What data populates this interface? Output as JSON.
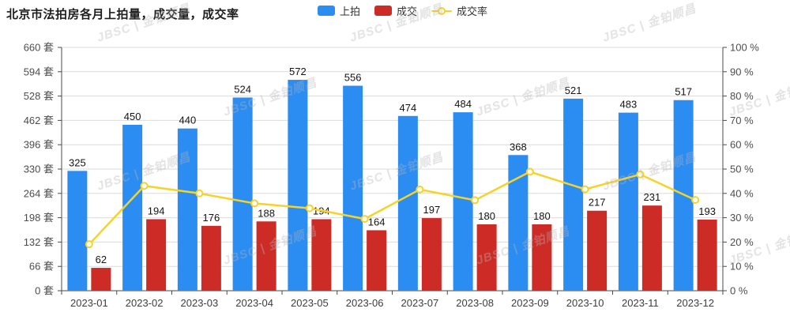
{
  "title": "北京市法拍房各月上拍量，成交量，成交率",
  "watermark_text": "JBSC | 金铂顺昌",
  "legend": [
    {
      "label": "上拍",
      "color": "#2B8CF2",
      "icon": "bar-swatch"
    },
    {
      "label": "成交",
      "color": "#CD2B26",
      "icon": "bar-swatch"
    },
    {
      "label": "成交率",
      "color": "#F5D328",
      "icon": "line-marker"
    }
  ],
  "chart_data": {
    "type": "bar",
    "subtype": "grouped-bars-with-line",
    "title": "北京市法拍房各月上拍量，成交量，成交率",
    "categories": [
      "2023-01",
      "2023-02",
      "2023-03",
      "2023-04",
      "2023-05",
      "2023-06",
      "2023-07",
      "2023-08",
      "2023-09",
      "2023-10",
      "2023-11",
      "2023-12"
    ],
    "series": [
      {
        "name": "上拍",
        "type": "bar",
        "axis": "left",
        "color": "#2B8CF2",
        "unit": "套",
        "values": [
          325,
          450,
          440,
          524,
          572,
          556,
          474,
          484,
          368,
          521,
          483,
          517
        ]
      },
      {
        "name": "成交",
        "type": "bar",
        "axis": "left",
        "color": "#CD2B26",
        "unit": "套",
        "values": [
          62,
          194,
          176,
          188,
          194,
          164,
          197,
          180,
          180,
          217,
          231,
          193
        ]
      },
      {
        "name": "成交率",
        "type": "line",
        "axis": "right",
        "color": "#F5D328",
        "unit": "%",
        "values": [
          19.1,
          43.1,
          40.0,
          35.9,
          33.9,
          29.5,
          41.6,
          37.2,
          48.9,
          41.7,
          47.8,
          37.3
        ]
      }
    ],
    "left_axis": {
      "min": 0,
      "max": 660,
      "step": 66,
      "suffix": " 套",
      "tick_labels": [
        "0 套",
        "66 套",
        "132 套",
        "198 套",
        "264 套",
        "330 套",
        "396 套",
        "462 套",
        "528 套",
        "594 套",
        "660 套"
      ]
    },
    "right_axis": {
      "min": 0,
      "max": 100,
      "step": 10,
      "suffix": " %",
      "tick_labels": [
        "0 %",
        "10 %",
        "20 %",
        "30 %",
        "40 %",
        "50 %",
        "60 %",
        "70 %",
        "80 %",
        "90 %",
        "100 %"
      ]
    },
    "grid": true,
    "legend_position": "top",
    "value_labels_shown": true
  },
  "colors": {
    "grid": "#DBDBDB",
    "axis": "#4A4A4A",
    "tick_text": "#4D4D4D",
    "x_label_text": "#3D3D3D",
    "value_label_text": "#141414"
  }
}
